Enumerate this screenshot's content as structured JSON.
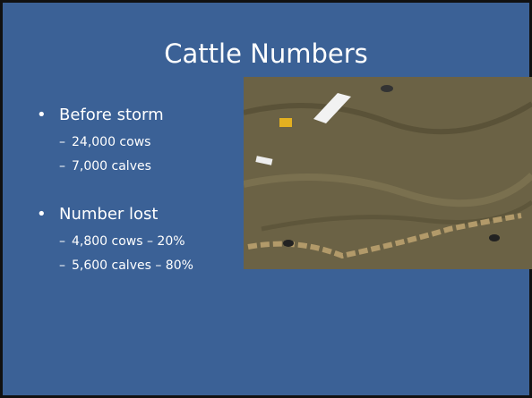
{
  "slide": {
    "title": "Cattle Numbers",
    "bullets": [
      {
        "text": "Before storm",
        "items": [
          "24,000 cows",
          "7,000 calves"
        ]
      },
      {
        "text": "Number lost",
        "items": [
          "4,800 cows – 20%",
          "5,600 calves – 80%"
        ]
      }
    ]
  }
}
